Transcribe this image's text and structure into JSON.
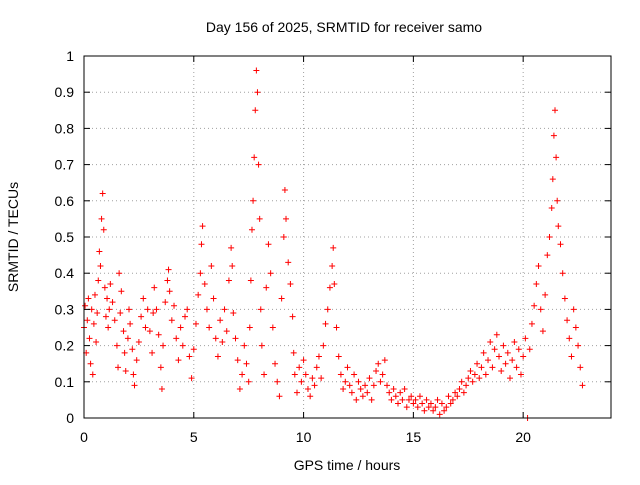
{
  "chart_data": {
    "type": "scatter",
    "title": "Day 156 of 2025, SRMTID for receiver samo",
    "xlabel": "GPS time / hours",
    "ylabel": "SRMTID / TECUs",
    "xlim": [
      0,
      24
    ],
    "ylim": [
      0,
      1
    ],
    "xticks": [
      0,
      5,
      10,
      15,
      20
    ],
    "xtick_labels": [
      "0",
      "5",
      "10",
      "15",
      "20"
    ],
    "yticks": [
      0,
      0.1,
      0.2,
      0.3,
      0.4,
      0.5,
      0.6,
      0.7,
      0.8,
      0.9,
      1
    ],
    "ytick_labels": [
      "0",
      "0.1",
      "0.2",
      "0.3",
      "0.4",
      "0.5",
      "0.6",
      "0.7",
      "0.8",
      "0.9",
      "1"
    ],
    "grid": true,
    "marker": "plus",
    "color": "#ff0000",
    "series": [
      {
        "name": "samo",
        "points": [
          [
            0.0,
            0.25
          ],
          [
            0.05,
            0.31
          ],
          [
            0.1,
            0.18
          ],
          [
            0.15,
            0.27
          ],
          [
            0.2,
            0.33
          ],
          [
            0.25,
            0.22
          ],
          [
            0.3,
            0.15
          ],
          [
            0.35,
            0.3
          ],
          [
            0.4,
            0.12
          ],
          [
            0.45,
            0.26
          ],
          [
            0.5,
            0.34
          ],
          [
            0.55,
            0.21
          ],
          [
            0.6,
            0.29
          ],
          [
            0.65,
            0.38
          ],
          [
            0.7,
            0.46
          ],
          [
            0.75,
            0.42
          ],
          [
            0.8,
            0.55
          ],
          [
            0.85,
            0.62
          ],
          [
            0.9,
            0.52
          ],
          [
            0.95,
            0.36
          ],
          [
            1.0,
            0.28
          ],
          [
            1.05,
            0.33
          ],
          [
            1.1,
            0.25
          ],
          [
            1.15,
            0.3
          ],
          [
            1.2,
            0.37
          ],
          [
            1.3,
            0.32
          ],
          [
            1.4,
            0.27
          ],
          [
            1.5,
            0.2
          ],
          [
            1.55,
            0.14
          ],
          [
            1.6,
            0.4
          ],
          [
            1.65,
            0.29
          ],
          [
            1.7,
            0.35
          ],
          [
            1.8,
            0.24
          ],
          [
            1.85,
            0.18
          ],
          [
            1.9,
            0.13
          ],
          [
            2.0,
            0.22
          ],
          [
            2.05,
            0.3
          ],
          [
            2.1,
            0.26
          ],
          [
            2.2,
            0.19
          ],
          [
            2.25,
            0.12
          ],
          [
            2.3,
            0.09
          ],
          [
            2.4,
            0.16
          ],
          [
            2.5,
            0.21
          ],
          [
            2.6,
            0.28
          ],
          [
            2.7,
            0.33
          ],
          [
            2.8,
            0.25
          ],
          [
            2.9,
            0.3
          ],
          [
            3.0,
            0.24
          ],
          [
            3.1,
            0.18
          ],
          [
            3.15,
            0.29
          ],
          [
            3.2,
            0.36
          ],
          [
            3.3,
            0.3
          ],
          [
            3.4,
            0.23
          ],
          [
            3.5,
            0.14
          ],
          [
            3.55,
            0.08
          ],
          [
            3.6,
            0.2
          ],
          [
            3.7,
            0.32
          ],
          [
            3.8,
            0.38
          ],
          [
            3.85,
            0.41
          ],
          [
            3.9,
            0.35
          ],
          [
            4.0,
            0.27
          ],
          [
            4.1,
            0.31
          ],
          [
            4.2,
            0.22
          ],
          [
            4.3,
            0.16
          ],
          [
            4.4,
            0.25
          ],
          [
            4.5,
            0.2
          ],
          [
            4.6,
            0.28
          ],
          [
            4.7,
            0.3
          ],
          [
            4.8,
            0.17
          ],
          [
            4.9,
            0.11
          ],
          [
            5.0,
            0.19
          ],
          [
            5.1,
            0.26
          ],
          [
            5.2,
            0.34
          ],
          [
            5.3,
            0.4
          ],
          [
            5.35,
            0.48
          ],
          [
            5.4,
            0.53
          ],
          [
            5.5,
            0.37
          ],
          [
            5.6,
            0.3
          ],
          [
            5.7,
            0.25
          ],
          [
            5.8,
            0.42
          ],
          [
            5.9,
            0.33
          ],
          [
            6.0,
            0.22
          ],
          [
            6.1,
            0.17
          ],
          [
            6.2,
            0.27
          ],
          [
            6.3,
            0.21
          ],
          [
            6.4,
            0.3
          ],
          [
            6.5,
            0.24
          ],
          [
            6.6,
            0.38
          ],
          [
            6.7,
            0.47
          ],
          [
            6.75,
            0.42
          ],
          [
            6.8,
            0.29
          ],
          [
            6.9,
            0.22
          ],
          [
            7.0,
            0.16
          ],
          [
            7.1,
            0.08
          ],
          [
            7.2,
            0.12
          ],
          [
            7.3,
            0.2
          ],
          [
            7.4,
            0.15
          ],
          [
            7.5,
            0.1
          ],
          [
            7.55,
            0.25
          ],
          [
            7.6,
            0.38
          ],
          [
            7.65,
            0.52
          ],
          [
            7.7,
            0.6
          ],
          [
            7.75,
            0.72
          ],
          [
            7.8,
            0.85
          ],
          [
            7.85,
            0.96
          ],
          [
            7.9,
            0.9
          ],
          [
            7.95,
            0.7
          ],
          [
            8.0,
            0.55
          ],
          [
            8.05,
            0.3
          ],
          [
            8.1,
            0.2
          ],
          [
            8.2,
            0.12
          ],
          [
            8.3,
            0.36
          ],
          [
            8.4,
            0.48
          ],
          [
            8.5,
            0.4
          ],
          [
            8.6,
            0.25
          ],
          [
            8.7,
            0.15
          ],
          [
            8.8,
            0.1
          ],
          [
            8.9,
            0.06
          ],
          [
            9.0,
            0.33
          ],
          [
            9.1,
            0.5
          ],
          [
            9.15,
            0.63
          ],
          [
            9.2,
            0.55
          ],
          [
            9.3,
            0.43
          ],
          [
            9.4,
            0.37
          ],
          [
            9.5,
            0.28
          ],
          [
            9.55,
            0.18
          ],
          [
            9.6,
            0.12
          ],
          [
            9.7,
            0.07
          ],
          [
            9.8,
            0.14
          ],
          [
            9.9,
            0.1
          ],
          [
            10.0,
            0.16
          ],
          [
            10.1,
            0.12
          ],
          [
            10.2,
            0.08
          ],
          [
            10.3,
            0.06
          ],
          [
            10.4,
            0.11
          ],
          [
            10.5,
            0.09
          ],
          [
            10.6,
            0.14
          ],
          [
            10.7,
            0.17
          ],
          [
            10.8,
            0.11
          ],
          [
            10.9,
            0.2
          ],
          [
            11.0,
            0.26
          ],
          [
            11.1,
            0.3
          ],
          [
            11.2,
            0.36
          ],
          [
            11.3,
            0.42
          ],
          [
            11.35,
            0.47
          ],
          [
            11.4,
            0.37
          ],
          [
            11.5,
            0.25
          ],
          [
            11.6,
            0.17
          ],
          [
            11.7,
            0.12
          ],
          [
            11.8,
            0.08
          ],
          [
            11.9,
            0.1
          ],
          [
            12.0,
            0.14
          ],
          [
            12.1,
            0.09
          ],
          [
            12.2,
            0.07
          ],
          [
            12.3,
            0.12
          ],
          [
            12.4,
            0.05
          ],
          [
            12.5,
            0.1
          ],
          [
            12.6,
            0.08
          ],
          [
            12.7,
            0.06
          ],
          [
            12.8,
            0.09
          ],
          [
            12.9,
            0.07
          ],
          [
            13.0,
            0.11
          ],
          [
            13.1,
            0.05
          ],
          [
            13.2,
            0.09
          ],
          [
            13.3,
            0.13
          ],
          [
            13.4,
            0.15
          ],
          [
            13.5,
            0.1
          ],
          [
            13.6,
            0.12
          ],
          [
            13.7,
            0.16
          ],
          [
            13.8,
            0.09
          ],
          [
            13.9,
            0.07
          ],
          [
            14.0,
            0.05
          ],
          [
            14.1,
            0.08
          ],
          [
            14.2,
            0.06
          ],
          [
            14.3,
            0.04
          ],
          [
            14.4,
            0.07
          ],
          [
            14.5,
            0.05
          ],
          [
            14.6,
            0.08
          ],
          [
            14.7,
            0.03
          ],
          [
            14.8,
            0.05
          ],
          [
            14.9,
            0.06
          ],
          [
            15.0,
            0.04
          ],
          [
            15.1,
            0.05
          ],
          [
            15.2,
            0.03
          ],
          [
            15.3,
            0.06
          ],
          [
            15.4,
            0.04
          ],
          [
            15.5,
            0.02
          ],
          [
            15.6,
            0.05
          ],
          [
            15.7,
            0.03
          ],
          [
            15.8,
            0.04
          ],
          [
            15.9,
            0.02
          ],
          [
            16.0,
            0.03
          ],
          [
            16.1,
            0.05
          ],
          [
            16.2,
            0.01
          ],
          [
            16.3,
            0.04
          ],
          [
            16.4,
            0.02
          ],
          [
            16.5,
            0.03
          ],
          [
            16.6,
            0.06
          ],
          [
            16.7,
            0.04
          ],
          [
            16.8,
            0.05
          ],
          [
            16.9,
            0.07
          ],
          [
            17.0,
            0.06
          ],
          [
            17.1,
            0.08
          ],
          [
            17.2,
            0.1
          ],
          [
            17.3,
            0.07
          ],
          [
            17.4,
            0.09
          ],
          [
            17.5,
            0.11
          ],
          [
            17.6,
            0.13
          ],
          [
            17.7,
            0.1
          ],
          [
            17.8,
            0.12
          ],
          [
            17.9,
            0.15
          ],
          [
            18.0,
            0.11
          ],
          [
            18.1,
            0.14
          ],
          [
            18.2,
            0.18
          ],
          [
            18.3,
            0.12
          ],
          [
            18.4,
            0.16
          ],
          [
            18.5,
            0.21
          ],
          [
            18.6,
            0.14
          ],
          [
            18.7,
            0.19
          ],
          [
            18.8,
            0.23
          ],
          [
            18.9,
            0.17
          ],
          [
            19.0,
            0.13
          ],
          [
            19.1,
            0.2
          ],
          [
            19.2,
            0.15
          ],
          [
            19.3,
            0.18
          ],
          [
            19.4,
            0.11
          ],
          [
            19.5,
            0.16
          ],
          [
            19.6,
            0.21
          ],
          [
            19.7,
            0.14
          ],
          [
            19.8,
            0.19
          ],
          [
            19.9,
            0.12
          ],
          [
            20.0,
            0.17
          ],
          [
            20.1,
            0.22
          ],
          [
            20.2,
            0.0
          ],
          [
            20.3,
            0.19
          ],
          [
            20.4,
            0.26
          ],
          [
            20.5,
            0.31
          ],
          [
            20.6,
            0.37
          ],
          [
            20.7,
            0.42
          ],
          [
            20.8,
            0.3
          ],
          [
            20.9,
            0.24
          ],
          [
            21.0,
            0.34
          ],
          [
            21.1,
            0.45
          ],
          [
            21.2,
            0.5
          ],
          [
            21.3,
            0.58
          ],
          [
            21.35,
            0.66
          ],
          [
            21.4,
            0.78
          ],
          [
            21.45,
            0.85
          ],
          [
            21.5,
            0.72
          ],
          [
            21.55,
            0.6
          ],
          [
            21.6,
            0.53
          ],
          [
            21.7,
            0.48
          ],
          [
            21.8,
            0.4
          ],
          [
            21.9,
            0.33
          ],
          [
            22.0,
            0.27
          ],
          [
            22.1,
            0.22
          ],
          [
            22.2,
            0.17
          ],
          [
            22.3,
            0.3
          ],
          [
            22.4,
            0.25
          ],
          [
            22.5,
            0.2
          ],
          [
            22.6,
            0.14
          ],
          [
            22.7,
            0.09
          ]
        ]
      }
    ]
  }
}
